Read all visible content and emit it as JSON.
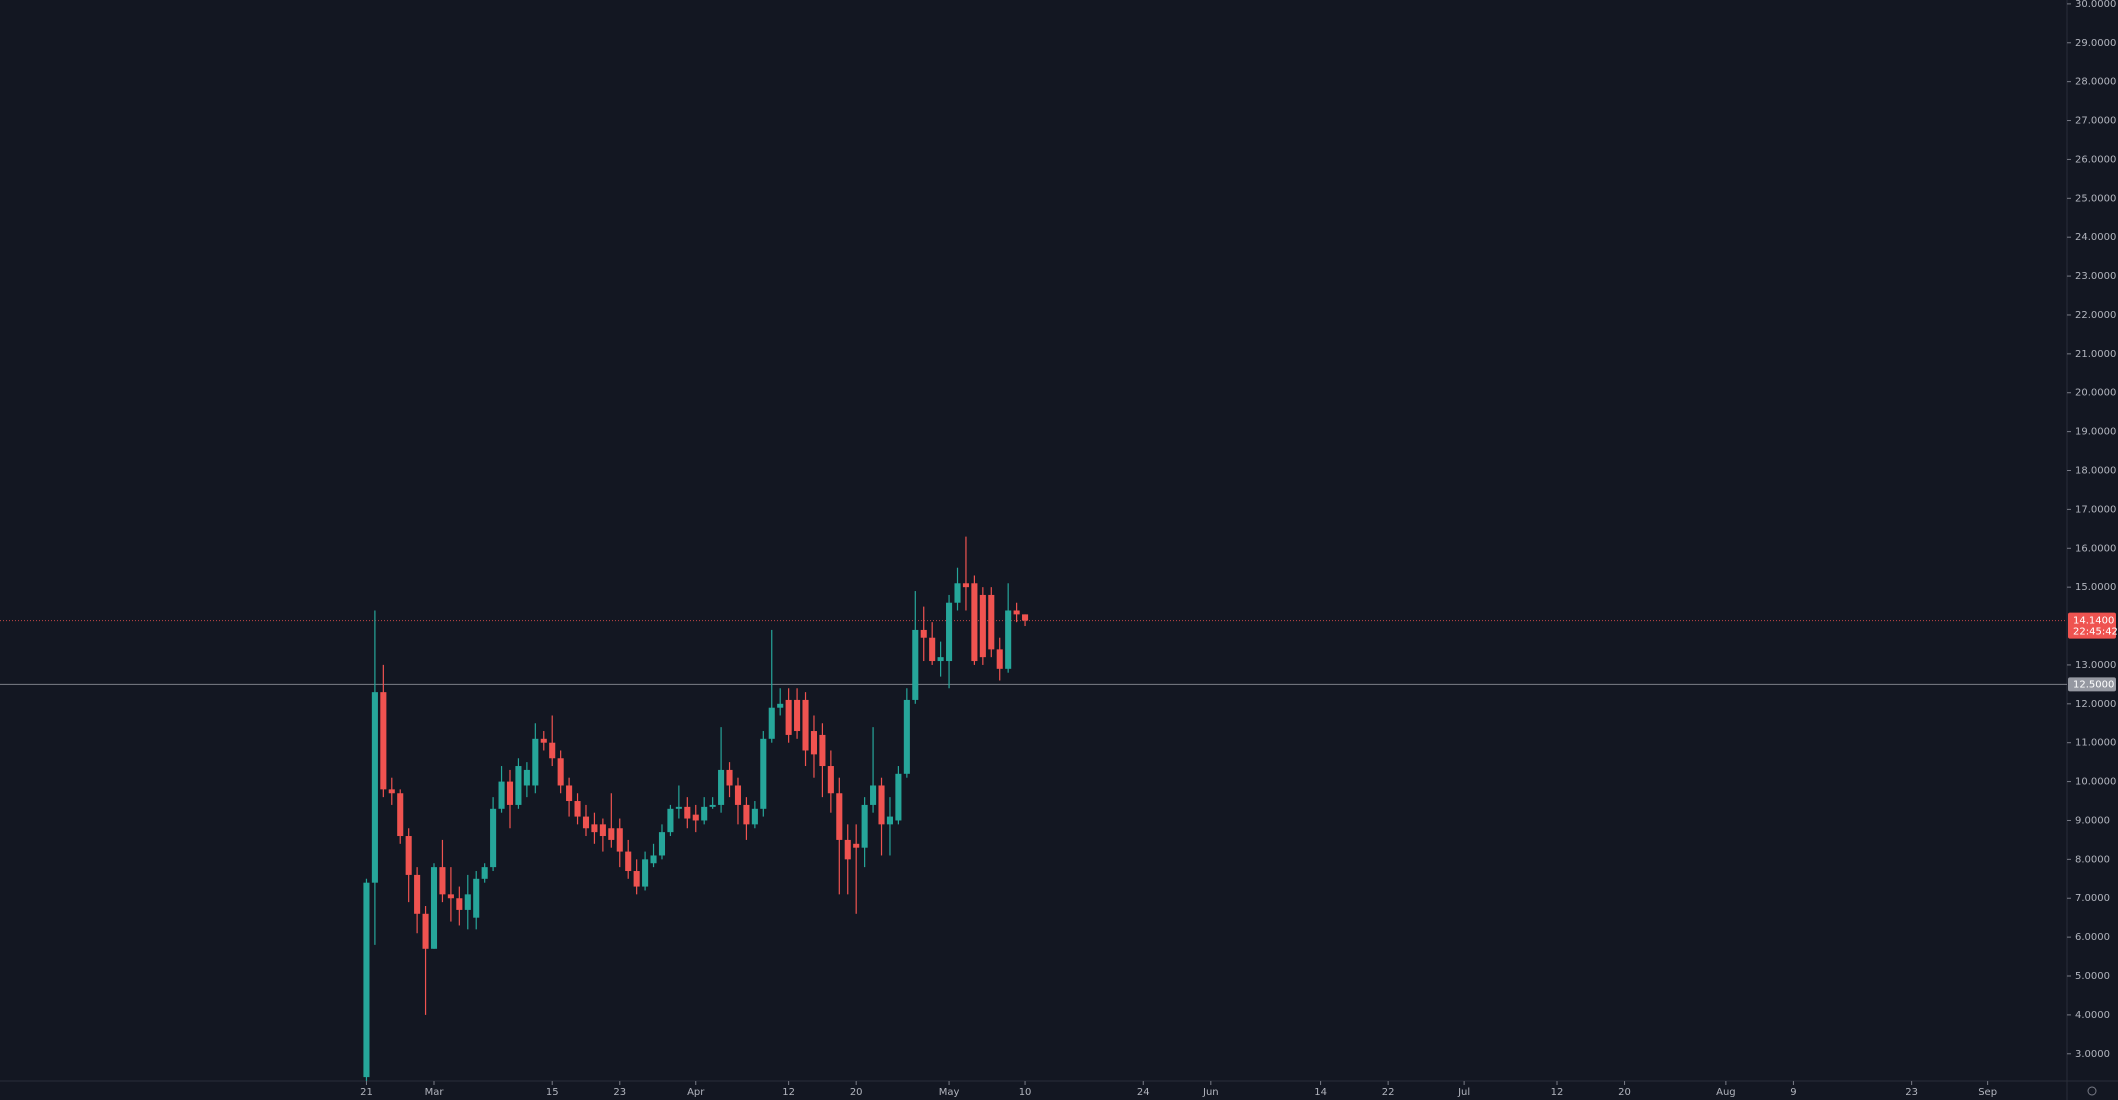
{
  "chart_data": {
    "type": "candlestick",
    "open": [
      2.4,
      7.4,
      12.3,
      9.8,
      9.7,
      8.6,
      7.6,
      6.6,
      5.7,
      7.8,
      7.1,
      7.0,
      6.7,
      6.5,
      7.5,
      7.8,
      9.3,
      10.0,
      9.4,
      9.9,
      9.9,
      11.1,
      11.0,
      10.6,
      9.9,
      9.5,
      9.1,
      8.9,
      8.9,
      8.8,
      8.8,
      8.2,
      7.7,
      7.3,
      7.9,
      8.1,
      8.7,
      9.3,
      9.35,
      9.15,
      9.0,
      9.35,
      9.4,
      10.3,
      9.9,
      9.4,
      8.9,
      9.3,
      11.1,
      11.9,
      12.1,
      12.1,
      12.1,
      11.3,
      11.2,
      10.4,
      9.7,
      8.5,
      8.4,
      8.3,
      9.4,
      9.9,
      8.9,
      9.0,
      10.2,
      12.1,
      13.9,
      13.7,
      13.1,
      13.1,
      14.6,
      15.1,
      15.1,
      14.8,
      14.8,
      13.4,
      12.9,
      14.4,
      14.3
    ],
    "high": [
      7.5,
      14.4,
      13.0,
      10.1,
      9.8,
      8.8,
      7.8,
      6.8,
      7.9,
      8.5,
      7.8,
      7.3,
      7.6,
      7.7,
      7.9,
      9.6,
      10.4,
      10.3,
      10.6,
      10.5,
      11.5,
      11.3,
      11.7,
      10.8,
      10.1,
      9.7,
      9.4,
      9.2,
      9.05,
      9.7,
      9.05,
      8.5,
      8.0,
      8.2,
      8.4,
      8.9,
      9.4,
      9.9,
      9.6,
      9.4,
      9.6,
      9.6,
      11.4,
      10.5,
      10.1,
      9.6,
      9.5,
      11.3,
      13.9,
      12.4,
      12.4,
      12.4,
      12.3,
      11.7,
      11.5,
      10.8,
      10.1,
      8.9,
      8.9,
      9.6,
      11.4,
      10.1,
      9.6,
      10.4,
      12.4,
      14.9,
      14.5,
      14.1,
      13.6,
      14.8,
      15.5,
      16.3,
      15.3,
      15.0,
      15.0,
      13.7,
      15.1,
      14.6,
      14.3
    ],
    "low": [
      2.3,
      5.8,
      9.6,
      9.4,
      8.4,
      6.9,
      6.1,
      4.0,
      5.7,
      6.9,
      6.4,
      6.3,
      6.2,
      6.2,
      7.4,
      7.7,
      9.2,
      8.8,
      9.3,
      9.6,
      9.7,
      10.8,
      10.4,
      9.7,
      9.1,
      8.9,
      8.6,
      8.4,
      8.2,
      8.3,
      7.8,
      7.5,
      7.1,
      7.2,
      7.8,
      8.0,
      8.6,
      9.05,
      8.8,
      8.7,
      8.9,
      9.3,
      9.2,
      9.6,
      8.9,
      8.5,
      8.8,
      9.1,
      11.0,
      11.7,
      11.0,
      11.1,
      10.4,
      10.1,
      9.6,
      9.2,
      7.1,
      7.1,
      6.6,
      7.8,
      9.2,
      8.1,
      8.1,
      8.9,
      10.1,
      12.0,
      13.1,
      13.0,
      12.7,
      12.4,
      14.4,
      14.4,
      13.0,
      13.0,
      13.2,
      12.6,
      12.8,
      14.1,
      14.0
    ],
    "close": [
      7.4,
      12.3,
      9.8,
      9.7,
      8.6,
      7.6,
      6.6,
      5.7,
      7.8,
      7.1,
      7.0,
      6.7,
      7.1,
      7.5,
      7.8,
      9.3,
      10.0,
      9.4,
      10.4,
      10.3,
      11.1,
      11.0,
      10.6,
      9.9,
      9.5,
      9.1,
      8.8,
      8.7,
      8.6,
      8.5,
      8.2,
      7.7,
      7.3,
      8.0,
      8.1,
      8.7,
      9.3,
      9.35,
      9.05,
      9.0,
      9.35,
      9.4,
      10.3,
      9.9,
      9.4,
      8.9,
      9.3,
      11.1,
      11.9,
      12.0,
      11.2,
      11.3,
      10.8,
      10.7,
      10.4,
      9.7,
      8.5,
      8.0,
      8.3,
      9.4,
      9.9,
      8.9,
      9.1,
      10.2,
      12.1,
      13.9,
      13.7,
      13.1,
      13.2,
      14.6,
      15.1,
      15.0,
      13.1,
      13.2,
      13.4,
      12.9,
      14.4,
      14.3,
      14.14
    ],
    "up_color": "#26a69a",
    "down_color": "#ef5350",
    "xlim": [
      -43.4,
      201.4
    ],
    "xticks": [
      {
        "value": 0,
        "label": "21"
      },
      {
        "value": 8,
        "label": "Mar"
      },
      {
        "value": 22,
        "label": "15"
      },
      {
        "value": 30,
        "label": "23"
      },
      {
        "value": 39,
        "label": "Apr"
      },
      {
        "value": 50,
        "label": "12"
      },
      {
        "value": 58,
        "label": "20"
      },
      {
        "value": 69,
        "label": "May"
      },
      {
        "value": 78,
        "label": "10"
      },
      {
        "value": 92,
        "label": "24"
      },
      {
        "value": 100,
        "label": "Jun"
      },
      {
        "value": 113,
        "label": "14"
      },
      {
        "value": 121,
        "label": "22"
      },
      {
        "value": 130,
        "label": "Jul"
      },
      {
        "value": 141,
        "label": "12"
      },
      {
        "value": 149,
        "label": "20"
      },
      {
        "value": 161,
        "label": "Aug"
      },
      {
        "value": 169,
        "label": "9"
      },
      {
        "value": 183,
        "label": "23"
      },
      {
        "value": 192,
        "label": "Sep"
      }
    ],
    "ylim": [
      2.3,
      30.1
    ],
    "yticks": [
      {
        "value": 3,
        "label": "3.0000"
      },
      {
        "value": 4,
        "label": "4.0000"
      },
      {
        "value": 5,
        "label": "5.0000"
      },
      {
        "value": 6,
        "label": "6.0000"
      },
      {
        "value": 7,
        "label": "7.0000"
      },
      {
        "value": 8,
        "label": "8.0000"
      },
      {
        "value": 9,
        "label": "9.0000"
      },
      {
        "value": 10,
        "label": "10.0000"
      },
      {
        "value": 11,
        "label": "11.0000"
      },
      {
        "value": 12,
        "label": "12.0000"
      },
      {
        "value": 13,
        "label": "13.0000"
      },
      {
        "value": 15,
        "label": "15.0000"
      },
      {
        "value": 16,
        "label": "16.0000"
      },
      {
        "value": 17,
        "label": "17.0000"
      },
      {
        "value": 18,
        "label": "18.0000"
      },
      {
        "value": 19,
        "label": "19.0000"
      },
      {
        "value": 20,
        "label": "20.0000"
      },
      {
        "value": 21,
        "label": "21.0000"
      },
      {
        "value": 22,
        "label": "22.0000"
      },
      {
        "value": 23,
        "label": "23.0000"
      },
      {
        "value": 24,
        "label": "24.0000"
      },
      {
        "value": 25,
        "label": "25.0000"
      },
      {
        "value": 26,
        "label": "26.0000"
      },
      {
        "value": 27,
        "label": "27.0000"
      },
      {
        "value": 28,
        "label": "28.0000"
      },
      {
        "value": 29,
        "label": "29.0000"
      },
      {
        "value": 30,
        "label": "30.0000"
      }
    ],
    "grid": false,
    "price_line": {
      "value": 14.14,
      "label": "14.1400",
      "countdown": "22:45:42",
      "color": "#ef5350"
    },
    "level_line": {
      "value": 12.5,
      "label": "12.5000",
      "color": "#9598a1"
    }
  }
}
